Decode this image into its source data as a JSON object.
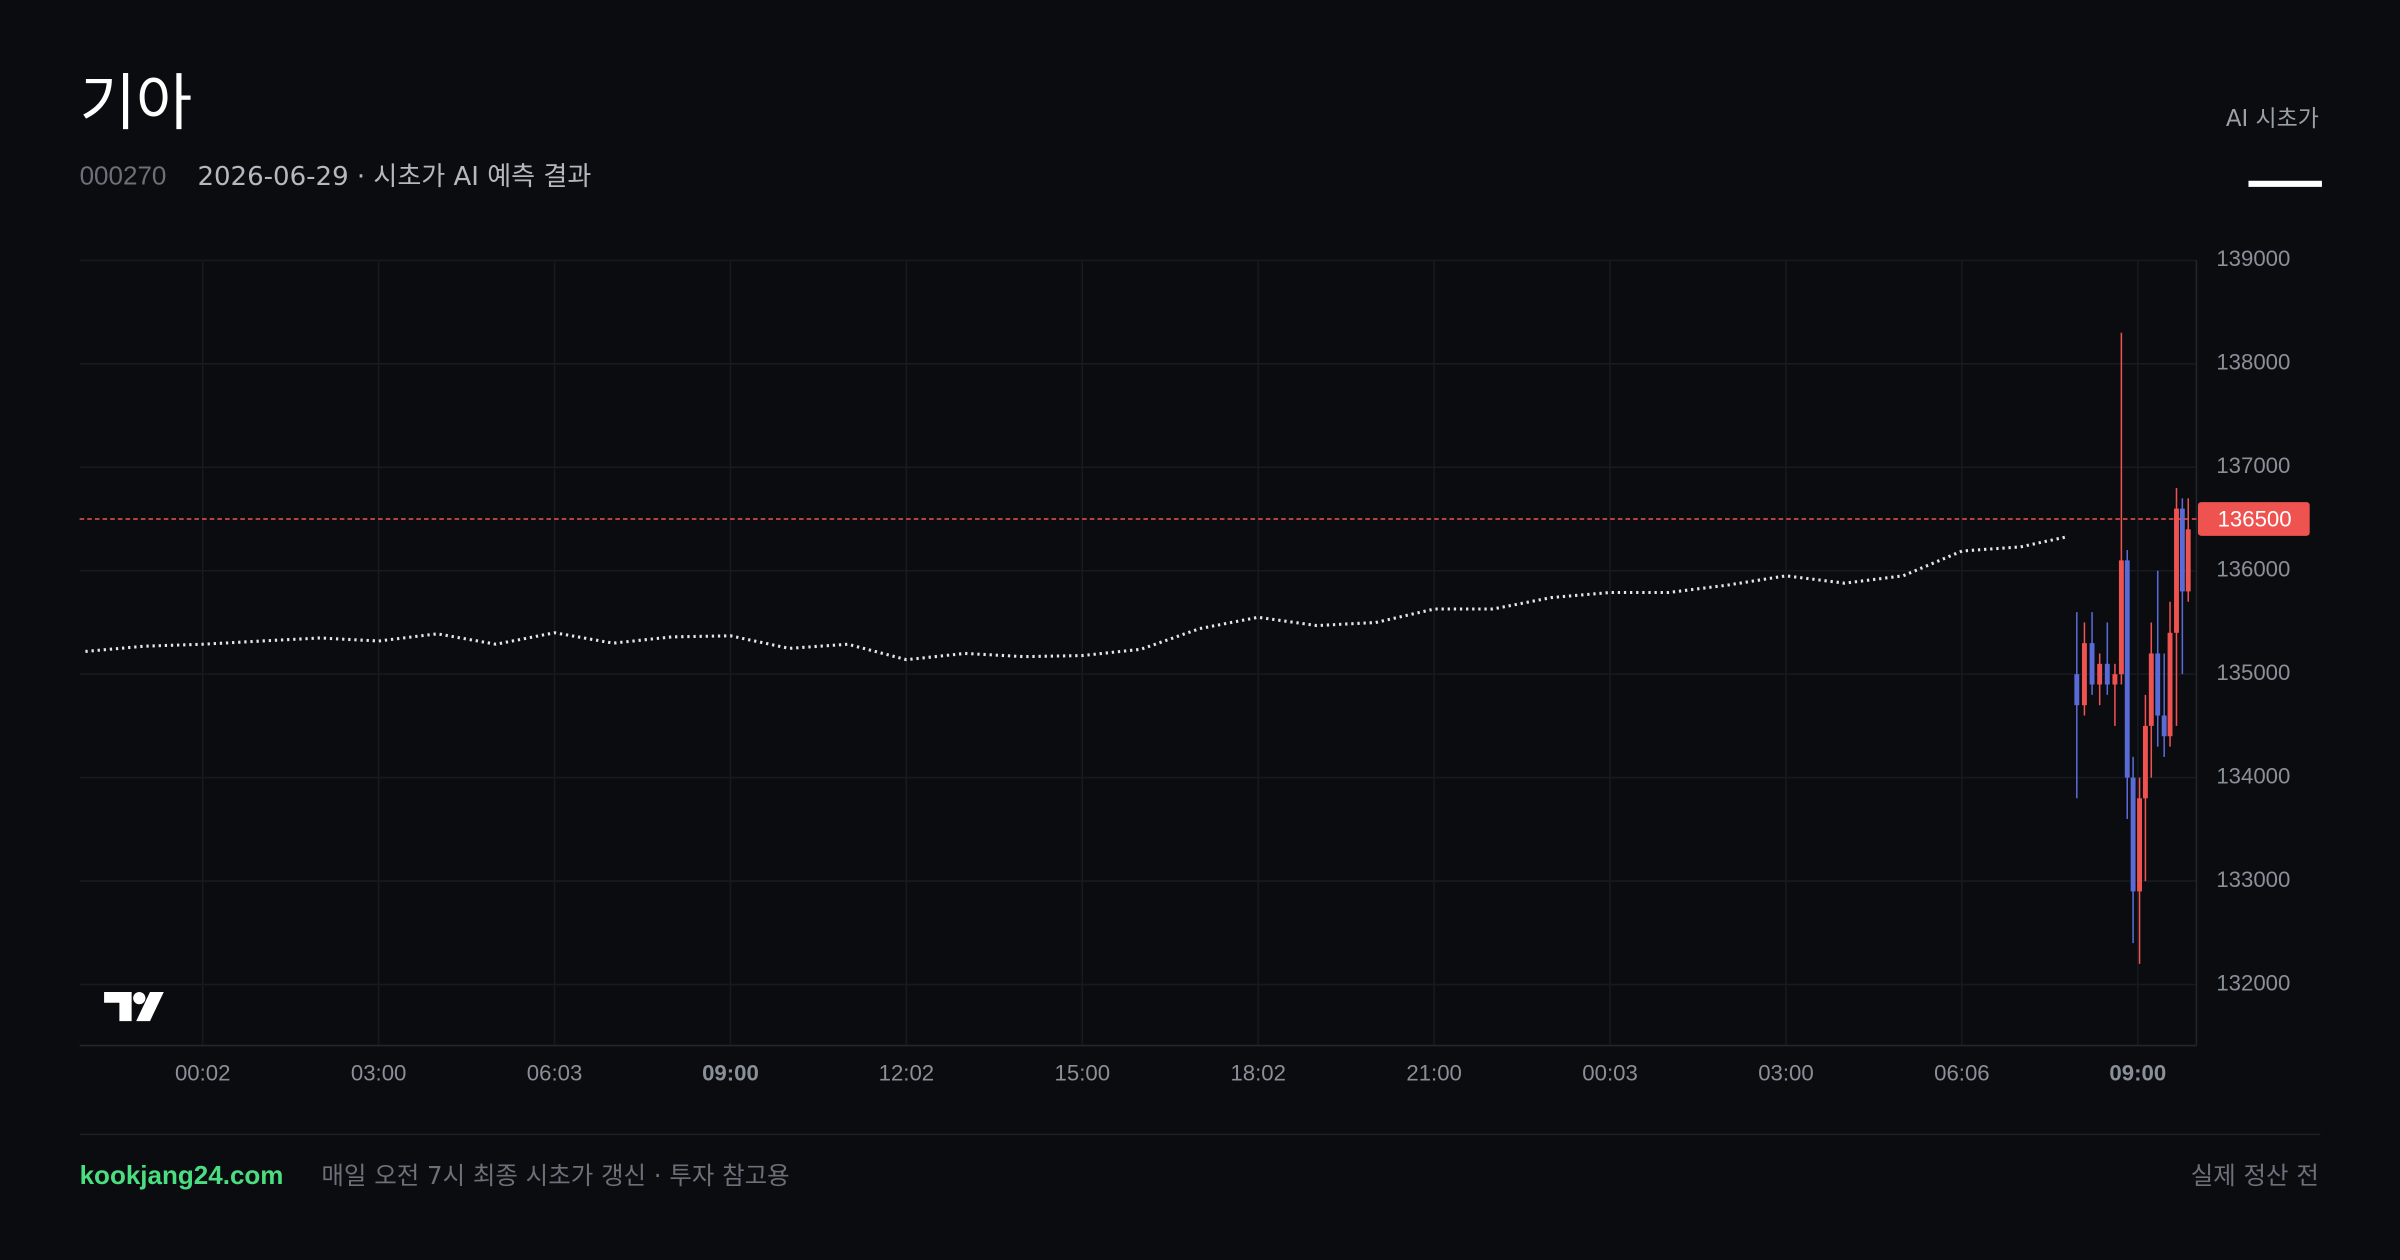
{
  "header": {
    "title": "기아",
    "code": "000270",
    "subtitle": "2026-06-29 · 시초가 AI 예측 결과",
    "tab": "AI 시초가"
  },
  "footer": {
    "site": "kookjang24.com",
    "note": "매일 오전 7시 최종 시초가 갱신 · 투자 참고용",
    "status": "실제 정산 전"
  },
  "chart_data": {
    "type": "candlestick",
    "xlim": [
      -2.1,
      34.0
    ],
    "xticks": [
      {
        "value": 0,
        "label": "00:02"
      },
      {
        "value": 3,
        "label": "03:00"
      },
      {
        "value": 6,
        "label": "06:03"
      },
      {
        "value": 9,
        "label": "09:00"
      },
      {
        "value": 12,
        "label": "12:02"
      },
      {
        "value": 15,
        "label": "15:00"
      },
      {
        "value": 18,
        "label": "18:02"
      },
      {
        "value": 21,
        "label": "21:00"
      },
      {
        "value": 24,
        "label": "00:03"
      },
      {
        "value": 27,
        "label": "03:00"
      },
      {
        "value": 30,
        "label": "06:06"
      },
      {
        "value": 33,
        "label": "09:00"
      }
    ],
    "ylim": [
      131410,
      139000
    ],
    "yticks": [
      132000,
      133000,
      134000,
      135000,
      136000,
      137000,
      138000,
      139000
    ],
    "grid": true,
    "line": {
      "color": "#e6e6e6",
      "x": [
        -2,
        -1,
        0,
        1,
        2,
        3,
        4,
        5,
        6,
        7,
        8,
        9,
        10,
        11,
        12,
        13,
        14,
        15,
        16,
        17,
        18,
        19,
        20,
        21,
        22,
        23,
        24,
        25,
        26,
        27,
        28,
        29,
        30,
        31,
        31.8
      ],
      "values": [
        135220,
        135270,
        135290,
        135320,
        135350,
        135320,
        135390,
        135290,
        135400,
        135300,
        135360,
        135370,
        135250,
        135290,
        135140,
        135200,
        135170,
        135180,
        135240,
        135440,
        135550,
        135470,
        135500,
        135630,
        135630,
        135740,
        135790,
        135790,
        135860,
        135950,
        135880,
        135950,
        136190,
        136230,
        136330
      ]
    },
    "candles": {
      "up_color": "#ef5350",
      "down_color": "#5a6bd8",
      "x": [
        31.96,
        32.09,
        32.22,
        32.35,
        32.48,
        32.61,
        32.72,
        32.82,
        32.92,
        33.03,
        33.13,
        33.23,
        33.34,
        33.45,
        33.55,
        33.66,
        33.76,
        33.86
      ],
      "open": [
        135000,
        134700,
        135300,
        134900,
        135100,
        134900,
        135000,
        136100,
        134000,
        132900,
        133800,
        134500,
        135200,
        134600,
        134400,
        135400,
        136600,
        135800
      ],
      "high": [
        135600,
        135500,
        135600,
        135200,
        135500,
        135100,
        138300,
        136200,
        134200,
        134000,
        134800,
        135500,
        136000,
        135200,
        135700,
        136800,
        136700,
        136700
      ],
      "low": [
        133800,
        134600,
        134800,
        134700,
        134800,
        134500,
        134900,
        133600,
        132400,
        132200,
        133000,
        134000,
        134300,
        134200,
        134300,
        134500,
        135000,
        135700
      ],
      "close": [
        134700,
        135300,
        134900,
        135100,
        134900,
        135000,
        136100,
        134000,
        132900,
        133800,
        134500,
        135200,
        134600,
        134400,
        135400,
        136600,
        135800,
        136400
      ]
    },
    "price_line": {
      "value": 136500,
      "color": "#ef5350"
    }
  }
}
